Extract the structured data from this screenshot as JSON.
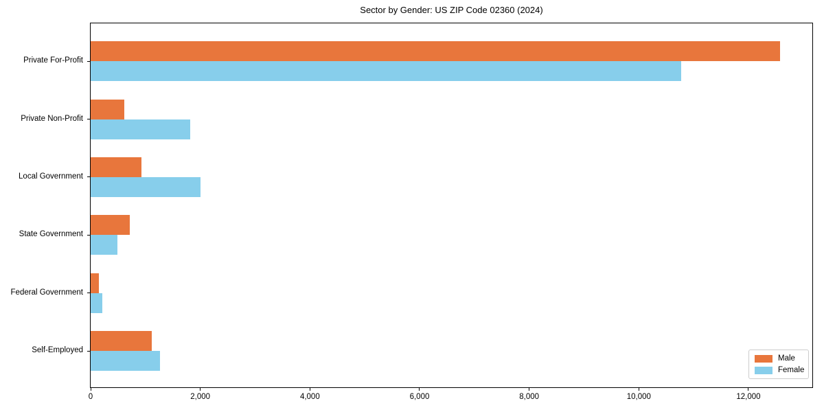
{
  "title": "Sector by Gender: US ZIP Code 02360 (2024)",
  "colors": {
    "male": "#E8763C",
    "female": "#87CEEB",
    "axis": "#000000",
    "legend_border": "#CCCCCC",
    "background": "#FFFFFF"
  },
  "legend": {
    "position": "lower right",
    "items": [
      {
        "label": "Male",
        "color": "#E8763C"
      },
      {
        "label": "Female",
        "color": "#87CEEB"
      }
    ]
  },
  "chart_data": {
    "type": "bar",
    "orientation": "horizontal",
    "title": "Sector by Gender: US ZIP Code 02360 (2024)",
    "categories": [
      "Private For-Profit",
      "Private Non-Profit",
      "Local Government",
      "State Government",
      "Federal Government",
      "Self-Employed"
    ],
    "series": [
      {
        "name": "Male",
        "color": "#E8763C",
        "values": [
          12580,
          610,
          930,
          720,
          150,
          1120
        ]
      },
      {
        "name": "Female",
        "color": "#87CEEB",
        "values": [
          10770,
          1820,
          2000,
          490,
          210,
          1265
        ]
      }
    ],
    "xlabel": "",
    "ylabel": "",
    "xlim": [
      0,
      13190
    ],
    "xticks": [
      0,
      2000,
      4000,
      6000,
      8000,
      10000,
      12000
    ],
    "xtick_labels": [
      "0",
      "2,000",
      "4,000",
      "6,000",
      "8,000",
      "10,000",
      "12,000"
    ],
    "grid": false,
    "legend_position": "lower right"
  }
}
